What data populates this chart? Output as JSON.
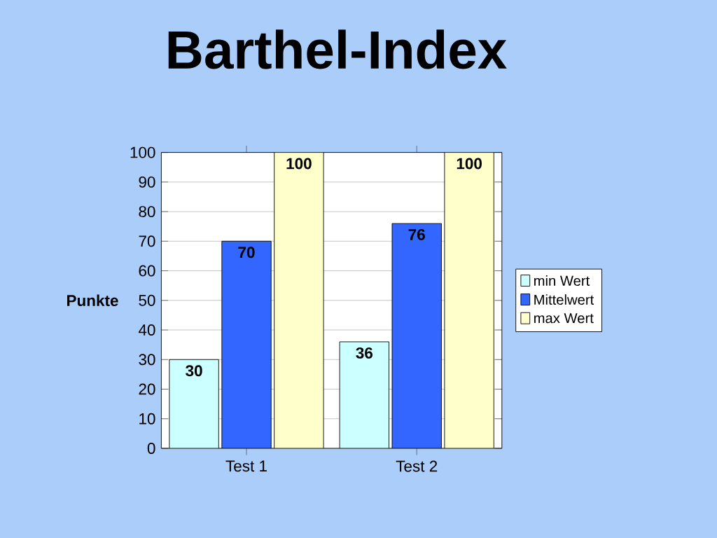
{
  "chart_data": {
    "type": "bar",
    "title": "Barthel-Index",
    "ylabel": "Punkte",
    "categories": [
      "Test 1",
      "Test 2"
    ],
    "series": [
      {
        "name": "min Wert",
        "color": "#ccffff",
        "values": [
          30,
          36
        ]
      },
      {
        "name": "Mittelwert",
        "color": "#3366ff",
        "values": [
          70,
          76
        ]
      },
      {
        "name": "max Wert",
        "color": "#ffffcc",
        "values": [
          100,
          100
        ]
      }
    ],
    "ylim": [
      0,
      100
    ],
    "yticks": [
      0,
      10,
      20,
      30,
      40,
      50,
      60,
      70,
      80,
      90,
      100
    ],
    "grid": "y",
    "legend": "right",
    "data_labels": true
  }
}
